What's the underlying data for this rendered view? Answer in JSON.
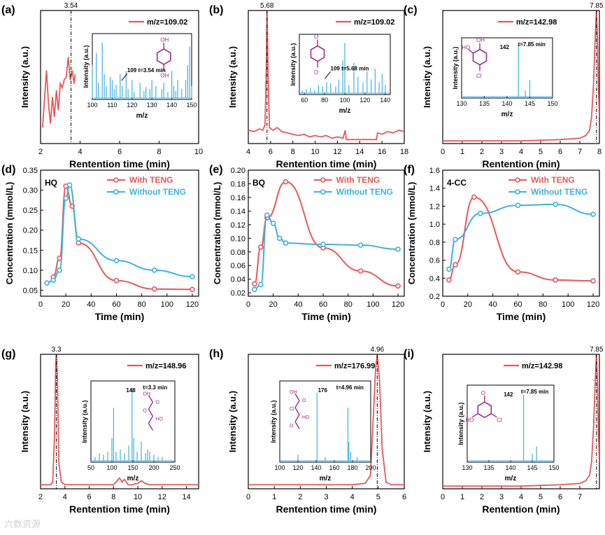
{
  "watermark": "六数资源",
  "colors": {
    "red": "#e8585a",
    "blue": "#3db1e0",
    "purple": "#9b2d86",
    "axis": "#000000"
  },
  "chart_data": [
    {
      "id": "a",
      "type": "line",
      "panel_label": "(a)",
      "xlabel": "Rentention time (min)",
      "ylabel": "Intensity (a.u.)",
      "xlim": [
        2,
        10
      ],
      "ylim": [
        0,
        1
      ],
      "xticks": [
        2,
        4,
        6,
        8,
        10
      ],
      "show_yticks": false,
      "vline": {
        "x": 3.54,
        "label": "3.54"
      },
      "legend": "m/z=109.02",
      "series": [
        {
          "color": "red",
          "x": [
            2.1,
            2.3,
            2.4,
            2.5,
            2.6,
            2.7,
            2.8,
            2.9,
            3.0,
            3.1,
            3.2,
            3.3,
            3.4,
            3.5,
            3.6,
            3.7,
            3.75
          ],
          "y": [
            0.12,
            0.55,
            0.3,
            0.15,
            0.35,
            0.2,
            0.4,
            0.25,
            0.45,
            0.42,
            0.48,
            0.5,
            0.65,
            0.48,
            0.55,
            0.45,
            0.52
          ]
        }
      ],
      "inset": {
        "xlabel": "m/z",
        "ylabel": "Intensity (a.u.)",
        "xlim": [
          100,
          150
        ],
        "xticks": [
          100,
          110,
          120,
          130,
          140,
          150
        ],
        "annotation": "109 t=3.54 min",
        "molecule": "hydroquinone",
        "mol_labels": [
          "OH",
          "OH"
        ],
        "peaks_x": [
          100,
          102,
          103,
          105,
          106,
          107,
          109,
          110,
          111,
          112,
          114,
          115,
          117,
          118,
          120,
          121,
          124,
          126,
          127,
          129,
          130,
          132,
          135,
          136,
          138,
          140,
          141,
          142,
          143,
          145,
          147,
          148,
          149,
          150
        ],
        "peaks_y": [
          0.55,
          0.75,
          0.25,
          0.92,
          0.4,
          0.2,
          0.35,
          0.3,
          0.15,
          0.22,
          0.4,
          0.2,
          0.45,
          0.15,
          0.3,
          0.1,
          0.25,
          0.12,
          0.18,
          0.15,
          0.3,
          0.2,
          0.15,
          0.25,
          0.1,
          0.45,
          0.2,
          0.12,
          0.3,
          0.15,
          0.3,
          0.55,
          0.85,
          0.2
        ]
      }
    },
    {
      "id": "b",
      "type": "line",
      "panel_label": "(b)",
      "xlabel": "Rentention time (min)",
      "ylabel": "Intensity (a.u.)",
      "xlim": [
        4,
        18
      ],
      "ylim": [
        0,
        1
      ],
      "xticks": [
        4,
        6,
        8,
        10,
        12,
        14,
        16,
        18
      ],
      "show_yticks": false,
      "vline": {
        "x": 5.68,
        "label": "5.68"
      },
      "legend": "m/z=109.02",
      "series": [
        {
          "color": "red",
          "x": [
            4.0,
            4.5,
            5.0,
            5.3,
            5.5,
            5.6,
            5.68,
            5.78,
            5.9,
            6.2,
            6.6,
            7.0,
            7.5,
            8.0,
            8.5,
            9.0,
            9.5,
            10,
            10.5,
            11,
            11.5,
            12,
            12.5,
            12.7,
            12.8,
            13,
            13.5,
            14,
            14.5,
            15,
            15.5,
            15.6,
            16,
            16.5,
            17,
            17.5,
            18
          ],
          "y": [
            0.1,
            0.09,
            0.11,
            0.1,
            0.14,
            0.5,
            1.0,
            0.5,
            0.12,
            0.1,
            0.12,
            0.09,
            0.08,
            0.07,
            0.06,
            0.07,
            0.05,
            0.06,
            0.05,
            0.06,
            0.04,
            0.05,
            0.04,
            0.1,
            0.03,
            0.03,
            0.03,
            0.03,
            0.03,
            0.03,
            0.03,
            0.08,
            0.07,
            0.09,
            0.08,
            0.1,
            0.09
          ]
        }
      ],
      "inset": {
        "xlabel": "m/z",
        "ylabel": "Intensity (a.u.)",
        "xlim": [
          55,
          145
        ],
        "xticks": [
          60,
          80,
          100,
          120,
          140
        ],
        "annotation": "109 t=5.68 min",
        "molecule": "benzoquinone",
        "mol_labels": [
          "O",
          "O"
        ],
        "peaks_x": [
          58,
          62,
          66,
          70,
          74,
          78,
          82,
          86,
          91,
          94,
          98,
          100,
          104,
          109,
          113,
          118,
          122,
          126,
          130,
          134,
          137,
          140
        ],
        "peaks_y": [
          0.05,
          0.08,
          0.1,
          0.05,
          0.15,
          0.12,
          0.2,
          0.18,
          0.12,
          0.25,
          0.6,
          0.92,
          0.15,
          0.55,
          0.3,
          0.2,
          0.4,
          0.25,
          0.45,
          0.2,
          0.35,
          0.15
        ]
      }
    },
    {
      "id": "c",
      "type": "line",
      "panel_label": "(c)",
      "xlabel": "Rentention (min)",
      "ylabel": "Intensity (a.u.)",
      "xlim": [
        0,
        8
      ],
      "ylim": [
        0,
        1
      ],
      "xticks": [
        0,
        1,
        2,
        3,
        4,
        5,
        6,
        7,
        8
      ],
      "show_yticks": false,
      "vline": {
        "x": 7.85,
        "label": "7.85"
      },
      "legend": "m/z=142.98",
      "series": [
        {
          "color": "red",
          "x": [
            0,
            1,
            2,
            3,
            4,
            5,
            6,
            7,
            7.3,
            7.5,
            7.6,
            7.7,
            7.8,
            7.85,
            7.9,
            7.95,
            8.0
          ],
          "y": [
            0.02,
            0.02,
            0.02,
            0.02,
            0.02,
            0.025,
            0.03,
            0.04,
            0.06,
            0.1,
            0.2,
            0.45,
            0.85,
            1.0,
            0.8,
            0.4,
            0.2
          ]
        }
      ],
      "inset": {
        "xlabel": "m/z",
        "ylabel": "Intensity (a.u.)",
        "xlim": [
          130,
          150
        ],
        "xticks": [
          130,
          135,
          140,
          145,
          150
        ],
        "annotation": "t=7.85 min",
        "peak_label": "142",
        "molecule": "4-chlorocatechol",
        "mol_labels": [
          "HO",
          "OH",
          "Cl"
        ],
        "peaks_x": [
          142.5,
          144,
          145
        ],
        "peaks_y": [
          0.95,
          0.12,
          0.3
        ]
      }
    },
    {
      "id": "d",
      "type": "line",
      "panel_label": "(d)",
      "xlabel": "Time (min)",
      "ylabel": "Concentration (mmol/L)",
      "xlim": [
        0,
        125
      ],
      "ylim": [
        0.035,
        0.35
      ],
      "xticks": [
        0,
        20,
        40,
        60,
        80,
        100,
        120
      ],
      "yticks": [
        0.05,
        0.1,
        0.15,
        0.2,
        0.25,
        0.3,
        0.35
      ],
      "ytick_labels": [
        "0.05",
        "0.10",
        "0.15",
        "0.20",
        "0.25",
        "0.30",
        "0.35"
      ],
      "annotation": "HQ",
      "legend_names": [
        "With TENG",
        "Without TENG"
      ],
      "series": [
        {
          "name": "With TENG",
          "color": "red",
          "x": [
            10,
            15,
            20,
            25,
            30,
            60,
            90,
            120
          ],
          "y": [
            0.083,
            0.13,
            0.31,
            0.26,
            0.168,
            0.074,
            0.053,
            0.052
          ]
        },
        {
          "name": "Without TENG",
          "color": "blue",
          "x": [
            5,
            10,
            15,
            20,
            23,
            30,
            60,
            90,
            120
          ],
          "y": [
            0.068,
            0.075,
            0.1,
            0.28,
            0.313,
            0.178,
            0.124,
            0.1,
            0.084
          ]
        }
      ]
    },
    {
      "id": "e",
      "type": "line",
      "panel_label": "(e)",
      "xlabel": "Time (min)",
      "ylabel": "Concentration (mmol/L)",
      "xlim": [
        0,
        125
      ],
      "ylim": [
        0.015,
        0.2
      ],
      "xticks": [
        0,
        20,
        40,
        60,
        80,
        100,
        120
      ],
      "yticks": [
        0.02,
        0.04,
        0.06,
        0.08,
        0.1,
        0.12,
        0.14,
        0.16,
        0.18,
        0.2
      ],
      "ytick_labels": [
        "0.02",
        "0.04",
        "0.06",
        "0.08",
        "0.10",
        "0.12",
        "0.14",
        "0.16",
        "0.18",
        "0.20"
      ],
      "annotation": "BQ",
      "legend_names": [
        "With TENG",
        "Without TENG"
      ],
      "series": [
        {
          "name": "With TENG",
          "color": "red",
          "x": [
            5,
            10,
            15,
            30,
            60,
            90,
            120
          ],
          "y": [
            0.033,
            0.087,
            0.13,
            0.183,
            0.086,
            0.052,
            0.03
          ]
        },
        {
          "name": "Without TENG",
          "color": "blue",
          "x": [
            5,
            10,
            15,
            20,
            25,
            30,
            60,
            90,
            120
          ],
          "y": [
            0.025,
            0.032,
            0.134,
            0.122,
            0.1,
            0.093,
            0.091,
            0.09,
            0.084
          ]
        }
      ]
    },
    {
      "id": "f",
      "type": "line",
      "panel_label": "(f)",
      "xlabel": "Time (min)",
      "ylabel": "Concentration (mmol/L)",
      "xlim": [
        0,
        125
      ],
      "ylim": [
        0.2,
        1.6
      ],
      "xticks": [
        0,
        20,
        40,
        60,
        80,
        100,
        120
      ],
      "yticks": [
        0.2,
        0.4,
        0.6,
        0.8,
        1.0,
        1.2,
        1.4,
        1.6
      ],
      "ytick_labels": [
        "0.2",
        "0.4",
        "0.6",
        "0.8",
        "1.0",
        "1.2",
        "1.4",
        "1.6"
      ],
      "annotation": "4-CC",
      "legend_names": [
        "With TENG",
        "Without TENG"
      ],
      "series": [
        {
          "name": "With TENG",
          "color": "red",
          "x": [
            5,
            10,
            25,
            60,
            90,
            120
          ],
          "y": [
            0.38,
            0.55,
            1.3,
            0.47,
            0.38,
            0.37
          ]
        },
        {
          "name": "Without TENG",
          "color": "blue",
          "x": [
            5,
            10,
            30,
            60,
            90,
            120
          ],
          "y": [
            0.5,
            0.83,
            1.12,
            1.21,
            1.22,
            1.11
          ]
        }
      ]
    },
    {
      "id": "g",
      "type": "line",
      "panel_label": "(g)",
      "xlabel": "Rentention time (min)",
      "ylabel": "Intensity (a.u.)",
      "xlim": [
        2,
        15
      ],
      "ylim": [
        0,
        1
      ],
      "xticks": [
        2,
        4,
        6,
        8,
        10,
        12,
        14
      ],
      "show_yticks": false,
      "vline": {
        "x": 3.3,
        "label": "3.3"
      },
      "legend": "m/z=148.96",
      "series": [
        {
          "color": "red",
          "x": [
            2,
            2.8,
            3.0,
            3.15,
            3.25,
            3.3,
            3.38,
            3.5,
            3.7,
            4,
            5,
            6,
            7,
            8,
            8.3,
            8.5,
            8.7,
            8.9,
            9.2,
            9.5,
            10,
            10.3,
            10.6,
            11,
            12,
            13,
            14,
            15
          ],
          "y": [
            0.03,
            0.03,
            0.05,
            0.4,
            0.95,
            1.0,
            0.85,
            0.2,
            0.05,
            0.03,
            0.03,
            0.03,
            0.03,
            0.03,
            0.06,
            0.08,
            0.05,
            0.07,
            0.03,
            0.03,
            0.04,
            0.06,
            0.04,
            0.03,
            0.03,
            0.03,
            0.03,
            0.03
          ]
        }
      ],
      "inset": {
        "xlabel": "m/z",
        "ylabel": "Intensity (a.u.)",
        "xlim": [
          50,
          250
        ],
        "xticks": [
          50,
          100,
          150,
          200,
          250
        ],
        "annotation": "t=3.3 min",
        "peak_label": "148",
        "molecule": "muconic acid",
        "mol_labels": [
          "OH",
          "O",
          "O",
          "HO"
        ],
        "peaks_x": [
          60,
          70,
          80,
          90,
          100,
          104,
          110,
          120,
          130,
          140,
          148,
          152,
          160,
          170,
          180,
          185,
          190,
          200,
          210,
          220
        ],
        "peaks_y": [
          0.05,
          0.1,
          0.08,
          0.12,
          0.3,
          0.7,
          0.12,
          0.15,
          0.1,
          0.2,
          0.95,
          0.3,
          0.12,
          0.25,
          0.1,
          0.15,
          0.12,
          0.08,
          0.05,
          0.05
        ]
      }
    },
    {
      "id": "h",
      "type": "line",
      "panel_label": "(h)",
      "xlabel": "Rentention time (min)",
      "ylabel": "Intensity (a.u.)",
      "xlim": [
        0,
        6
      ],
      "ylim": [
        0,
        1
      ],
      "xticks": [
        0,
        1,
        2,
        3,
        4,
        5,
        6
      ],
      "show_yticks": false,
      "vline": {
        "x": 4.96,
        "label": "4.96"
      },
      "legend": "m/z=176.99",
      "series": [
        {
          "color": "red",
          "x": [
            0,
            1,
            2,
            3,
            4,
            4.5,
            4.7,
            4.8,
            4.9,
            4.96,
            5.05,
            5.15,
            5.3,
            5.5,
            6
          ],
          "y": [
            0.03,
            0.03,
            0.03,
            0.03,
            0.03,
            0.04,
            0.1,
            0.5,
            0.9,
            1.0,
            0.8,
            0.3,
            0.05,
            0.03,
            0.03
          ]
        }
      ],
      "inset": {
        "xlabel": "m/z",
        "ylabel": "Intensity (a.u.)",
        "xlim": [
          100,
          200
        ],
        "xticks": [
          100,
          120,
          140,
          160,
          180,
          200
        ],
        "annotation": "t=4.96 min",
        "peak_label": "176",
        "molecule": "chloromuconic acid",
        "mol_labels": [
          "OH",
          "O",
          "Cl",
          "HO",
          "O"
        ],
        "peaks_x": [
          120,
          141,
          150,
          175,
          176,
          178,
          185
        ],
        "peaks_y": [
          0.08,
          0.9,
          0.05,
          0.7,
          0.25,
          0.12,
          0.05
        ]
      }
    },
    {
      "id": "i",
      "type": "line",
      "panel_label": "(i)",
      "xlabel": "Rentention (min)",
      "ylabel": "Intensity (a.u.)",
      "xlim": [
        0,
        8
      ],
      "ylim": [
        0,
        1
      ],
      "xticks": [
        0,
        1,
        2,
        3,
        4,
        5,
        6,
        7
      ],
      "xtick_labels": [
        "0",
        "1",
        "2",
        "3",
        "4",
        "5",
        "6",
        "7"
      ],
      "show_yticks": false,
      "vline": {
        "x": 7.85,
        "label": "7.85"
      },
      "legend": "m/z=142.98",
      "series": [
        {
          "color": "red",
          "x": [
            0,
            1,
            2,
            3,
            4,
            5,
            6,
            7,
            7.3,
            7.5,
            7.6,
            7.7,
            7.8,
            7.85,
            7.9,
            7.95,
            8.0
          ],
          "y": [
            0.02,
            0.02,
            0.02,
            0.02,
            0.02,
            0.025,
            0.03,
            0.04,
            0.06,
            0.1,
            0.2,
            0.45,
            0.85,
            1.0,
            0.8,
            0.4,
            0.2
          ]
        }
      ],
      "inset": {
        "xlabel": "m/z",
        "ylabel": "Intensity (a.u.)",
        "xlim": [
          130,
          150
        ],
        "xticks": [
          130,
          135,
          140,
          145,
          150
        ],
        "annotation": "t=7.85 min",
        "peak_label": "142",
        "molecule": "chloro-hydroxy-benzoquinone",
        "mol_labels": [
          "O",
          "HO",
          "Cl"
        ],
        "peaks_x": [
          143,
          145,
          146
        ],
        "peaks_y": [
          0.92,
          0.1,
          0.2
        ]
      }
    }
  ]
}
